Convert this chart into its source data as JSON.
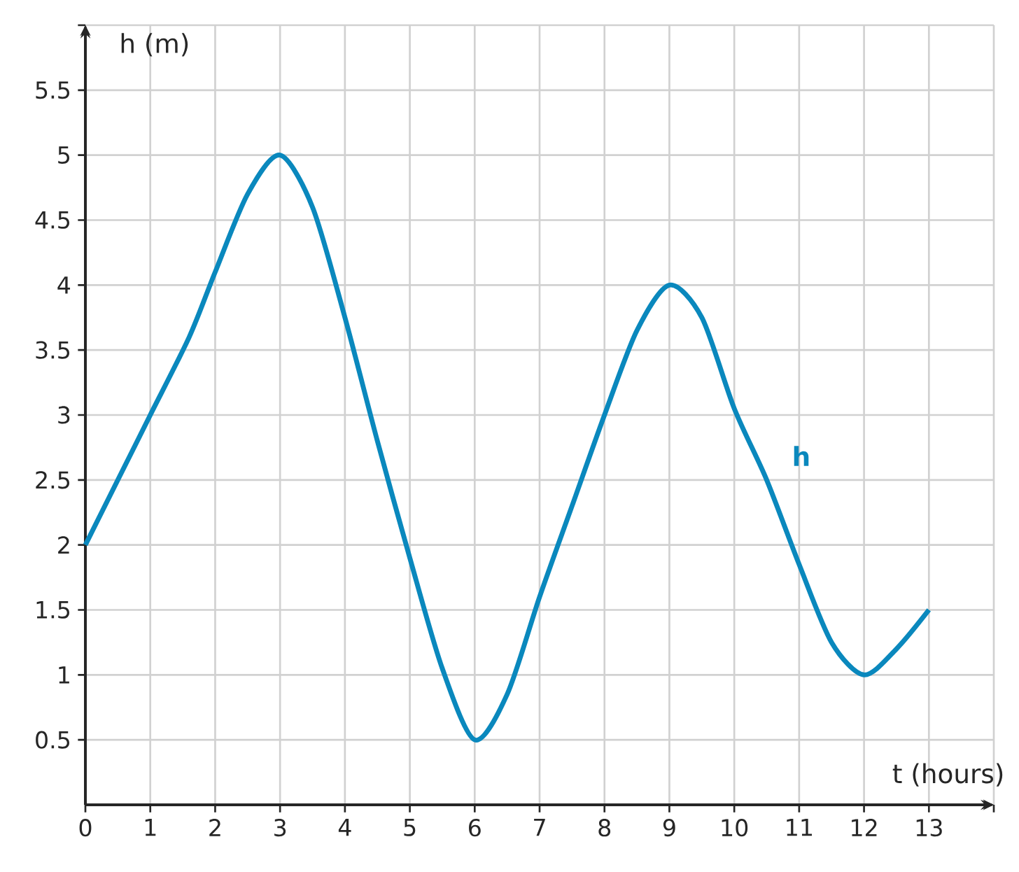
{
  "chart_data": {
    "type": "line",
    "xlabel": "t (hours)",
    "ylabel": "h (m)",
    "x": [
      0,
      0.5,
      1,
      1.6,
      2,
      2.5,
      3,
      3.5,
      4,
      4.5,
      5,
      5.5,
      6,
      6.5,
      7,
      7.5,
      8,
      8.5,
      9,
      9.5,
      10,
      10.5,
      11,
      11.5,
      12,
      12.5,
      13
    ],
    "series": [
      {
        "name": "h",
        "color": "#0a88bd",
        "values": [
          2,
          2.5,
          3,
          3.6,
          4.1,
          4.7,
          5,
          4.6,
          3.75,
          2.8,
          1.9,
          1.05,
          0.5,
          0.85,
          1.6,
          2.3,
          3.0,
          3.65,
          4,
          3.75,
          3.05,
          2.5,
          1.85,
          1.25,
          1,
          1.2,
          1.5
        ]
      }
    ],
    "xlim": [
      0,
      14
    ],
    "ylim": [
      0,
      6
    ],
    "xticks": [
      0,
      1,
      2,
      3,
      4,
      5,
      6,
      7,
      8,
      9,
      10,
      11,
      12,
      13,
      {
        "value": 14,
        "label": null
      }
    ],
    "yticks": [
      0.5,
      1,
      1.5,
      2,
      2.5,
      3,
      3.5,
      4,
      4.5,
      5,
      5.5,
      {
        "value": 6,
        "label": null
      }
    ],
    "grid": true,
    "marker": "none",
    "line_style": "solid"
  }
}
